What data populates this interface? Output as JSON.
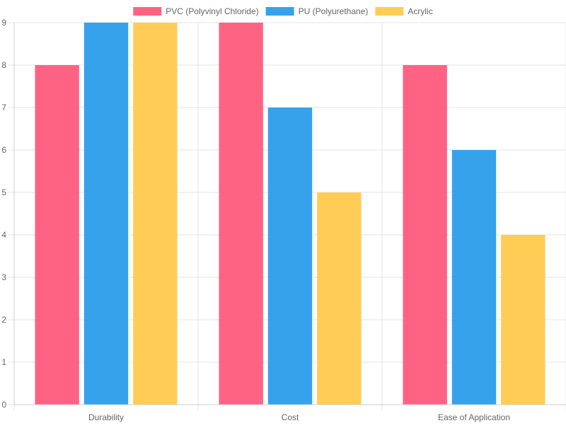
{
  "chart_data": {
    "type": "bar",
    "title": "",
    "xlabel": "",
    "ylabel": "",
    "categories": [
      "Durability",
      "Cost",
      "Ease of Application"
    ],
    "series": [
      {
        "name": "PVC (Polyvinyl Chloride)",
        "color": "#ff6384",
        "values": [
          8,
          9,
          8
        ]
      },
      {
        "name": "PU (Polyurethane)",
        "color": "#36a2eb",
        "values": [
          9,
          7,
          6
        ]
      },
      {
        "name": "Acrylic",
        "color": "#ffcd56",
        "values": [
          9,
          5,
          4
        ]
      }
    ],
    "ylim": [
      0,
      9
    ],
    "yticks": [
      0,
      1,
      2,
      3,
      4,
      5,
      6,
      7,
      8,
      9
    ],
    "grid": true,
    "legend_position": "top-center"
  }
}
